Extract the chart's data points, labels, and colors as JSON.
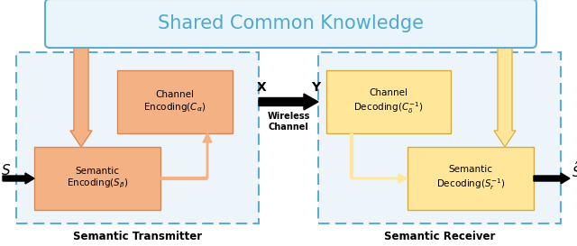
{
  "title": "Shared Common Knowledge",
  "title_color": "#4DAACC",
  "title_fontsize": 15,
  "bg_color": "#FFFFFF",
  "transmitter_label": "Semantic Transmitter",
  "receiver_label": "Semantic Receiver",
  "orange_box_color": "#F4B183",
  "orange_border_color": "#D4895A",
  "yellow_box_color": "#FFE699",
  "yellow_border_color": "#D4AA44",
  "dashed_box_color": "#5BADD6",
  "dashed_bg": "#EDF5FB",
  "ck_facecolor": "#EAF5FB",
  "wireless_label_1": "Wireless",
  "wireless_label_2": "Channel",
  "x_label": "X",
  "y_label": "Y",
  "s_in_label": "$S$",
  "s_out_label": "$\\hat{S}$",
  "channel_enc_line1": "Channel",
  "channel_enc_line2": "Encoding$(C_{\\alpha})$",
  "channel_dec_line1": "Channel",
  "channel_dec_line2": "Decoding$(C_{\\delta}^{-1})$",
  "sem_enc_line1": "Semantic",
  "sem_enc_line2": "Encoding$(S_{\\beta})$",
  "sem_dec_line1": "Semantic",
  "sem_dec_line2": "Decoding$(S_{r}^{-1})$"
}
